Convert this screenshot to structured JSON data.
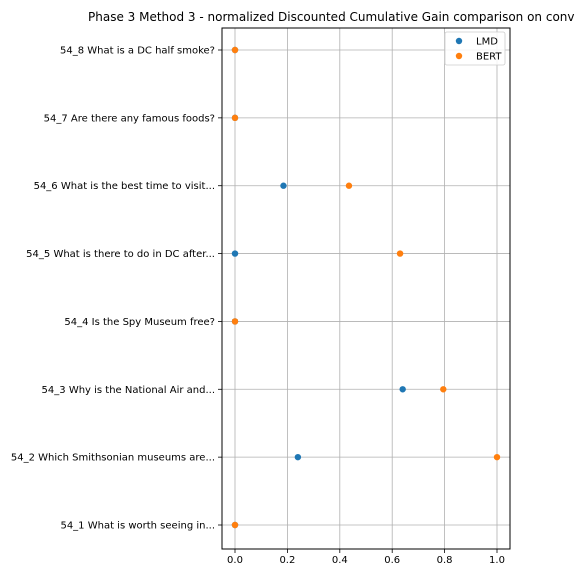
{
  "chart_data": {
    "type": "scatter",
    "title": "Phase 3 Method 3 - normalized Discounted Cumulative Gain comparison on conv",
    "xlabel": "",
    "ylabel": "",
    "xlim": [
      -0.05,
      1.05
    ],
    "x_ticks": [
      0.0,
      0.2,
      0.4,
      0.6,
      0.8,
      1.0
    ],
    "x_tick_labels": [
      "0.0",
      "0.2",
      "0.4",
      "0.6",
      "0.8",
      "1.0"
    ],
    "grid": true,
    "legend_position": "top-right",
    "categories": [
      "54_1 What is worth seeing in...",
      "54_2 Which Smithsonian museums are...",
      "54_3 Why is the National Air and...",
      "54_4 Is the Spy Museum free?",
      "54_5 What is there to do in DC after...",
      "54_6 What is the best time to visit...",
      "54_7 Are there any famous foods?",
      "54_8 What is a DC half smoke?"
    ],
    "series": [
      {
        "name": "LMD",
        "color": "#1f77b4",
        "values": [
          0.0,
          0.24,
          0.64,
          0.0,
          0.0,
          0.185,
          0.0,
          0.0
        ]
      },
      {
        "name": "BERT",
        "color": "#ff7f0e",
        "values": [
          0.0,
          1.0,
          0.795,
          0.0,
          0.63,
          0.435,
          0.0,
          0.0
        ]
      }
    ]
  }
}
